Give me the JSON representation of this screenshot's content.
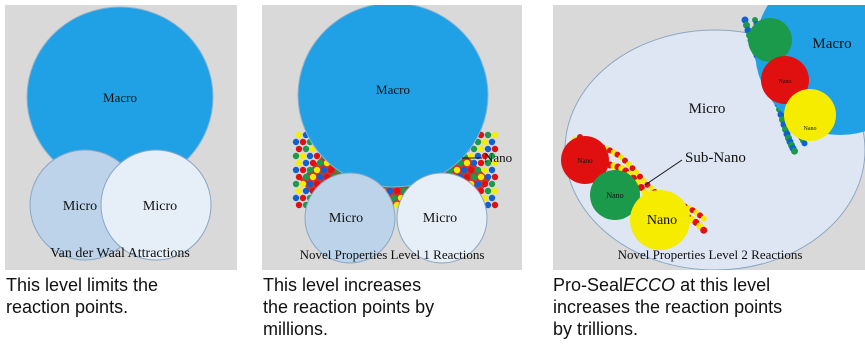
{
  "panels": [
    {
      "labels": [
        "Macro",
        "Micro",
        "Micro"
      ],
      "footer": "Van der Waal Attractions",
      "caption_lines": [
        "This level limits the",
        "reaction points."
      ]
    },
    {
      "labels": [
        "Macro",
        "Nano",
        "Micro",
        "Micro"
      ],
      "footer": "Novel Properties Level 1 Reactions",
      "caption_lines": [
        "This level increases",
        "the reaction points by",
        "millions."
      ]
    },
    {
      "labels": [
        "Macro",
        "Micro",
        "Sub-Nano",
        "Nano",
        "Nano",
        "Nano",
        "Nano",
        "Nano"
      ],
      "footer": "Novel Properties Level 2 Reactions",
      "caption_prefix": "Pro-Seal",
      "caption_emphasis": "ECCO",
      "caption_lines": [
        "at this level",
        "increases the reaction points",
        "by trillions."
      ]
    }
  ]
}
